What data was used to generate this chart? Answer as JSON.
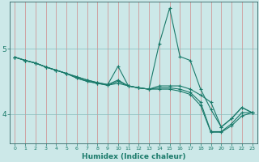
{
  "title": "",
  "xlabel": "Humidex (Indice chaleur)",
  "bg_color": "#cce8e8",
  "grid_color_v": "#d08888",
  "grid_color_h": "#88bbbb",
  "line_color": "#1a7a6a",
  "spine_color": "#336666",
  "xmin": -0.5,
  "xmax": 23.5,
  "ymin": 3.55,
  "ymax": 5.72,
  "yticks": [
    4,
    5
  ],
  "xticks": [
    0,
    1,
    2,
    3,
    4,
    5,
    6,
    7,
    8,
    9,
    10,
    11,
    12,
    13,
    14,
    15,
    16,
    17,
    18,
    19,
    20,
    21,
    22,
    23
  ],
  "lines": [
    [
      4.87,
      4.82,
      4.78,
      4.72,
      4.67,
      4.62,
      4.57,
      4.52,
      4.48,
      4.45,
      4.73,
      4.43,
      4.4,
      4.38,
      5.08,
      5.62,
      4.88,
      4.82,
      4.38,
      4.07,
      3.8,
      3.93,
      4.1,
      4.02
    ],
    [
      4.87,
      4.82,
      4.78,
      4.72,
      4.67,
      4.62,
      4.57,
      4.52,
      4.48,
      4.45,
      4.52,
      4.43,
      4.4,
      4.38,
      4.43,
      4.43,
      4.43,
      4.38,
      4.29,
      4.18,
      3.8,
      3.93,
      4.1,
      4.02
    ],
    [
      4.87,
      4.82,
      4.78,
      4.72,
      4.67,
      4.62,
      4.55,
      4.5,
      4.47,
      4.44,
      4.5,
      4.43,
      4.4,
      4.38,
      4.4,
      4.4,
      4.38,
      4.33,
      4.18,
      3.73,
      3.73,
      3.85,
      4.02,
      4.02
    ],
    [
      4.87,
      4.82,
      4.78,
      4.72,
      4.67,
      4.62,
      4.55,
      4.5,
      4.47,
      4.44,
      4.47,
      4.43,
      4.4,
      4.38,
      4.38,
      4.38,
      4.35,
      4.3,
      4.13,
      3.72,
      3.72,
      3.82,
      3.97,
      4.02
    ]
  ]
}
